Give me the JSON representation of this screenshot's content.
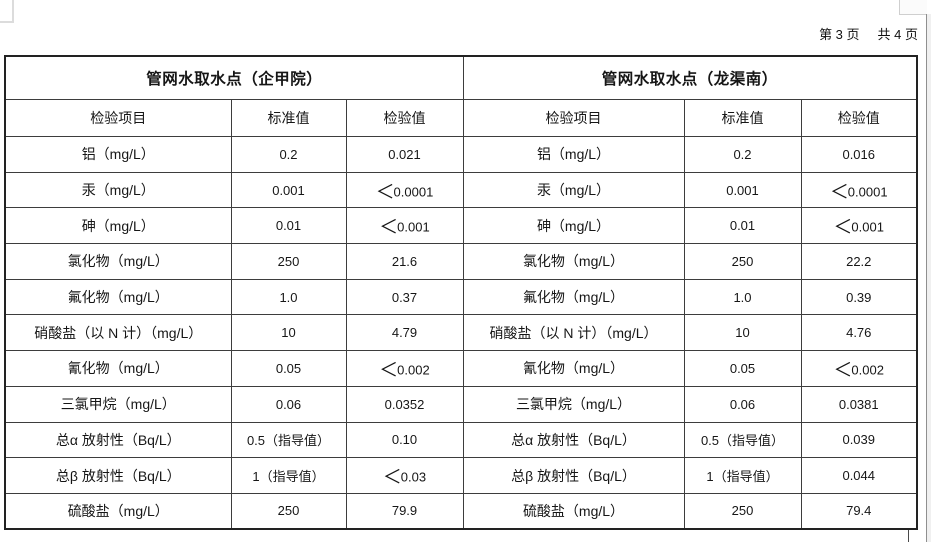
{
  "page_indicator": {
    "current": "第 3 页",
    "total": "共 4 页"
  },
  "tables": [
    {
      "title": "管网水取水点（企甲院）",
      "columns": [
        "检验项目",
        "标准值",
        "检验值"
      ],
      "rows": [
        {
          "item": "铝（mg/L）",
          "standard": "0.2",
          "value": "0.021"
        },
        {
          "item": "汞（mg/L）",
          "standard": "0.001",
          "value": "＜0.0001"
        },
        {
          "item": "砷（mg/L）",
          "standard": "0.01",
          "value": "＜0.001"
        },
        {
          "item": "氯化物（mg/L）",
          "standard": "250",
          "value": "21.6"
        },
        {
          "item": "氟化物（mg/L）",
          "standard": "1.0",
          "value": "0.37"
        },
        {
          "item": "硝酸盐（以 N 计）（mg/L）",
          "standard": "10",
          "value": "4.79"
        },
        {
          "item": "氰化物（mg/L）",
          "standard": "0.05",
          "value": "＜0.002"
        },
        {
          "item": "三氯甲烷（mg/L）",
          "standard": "0.06",
          "value": "0.0352"
        },
        {
          "item": "总α 放射性（Bq/L）",
          "standard": "0.5（指导值）",
          "value": "0.10"
        },
        {
          "item": "总β 放射性（Bq/L）",
          "standard": "1（指导值）",
          "value": "＜0.03"
        },
        {
          "item": "硫酸盐（mg/L）",
          "standard": "250",
          "value": "79.9"
        }
      ]
    },
    {
      "title": "管网水取水点（龙渠南）",
      "columns": [
        "检验项目",
        "标准值",
        "检验值"
      ],
      "rows": [
        {
          "item": "铝（mg/L）",
          "standard": "0.2",
          "value": "0.016"
        },
        {
          "item": "汞（mg/L）",
          "standard": "0.001",
          "value": "＜0.0001"
        },
        {
          "item": "砷（mg/L）",
          "standard": "0.01",
          "value": "＜0.001"
        },
        {
          "item": "氯化物（mg/L）",
          "standard": "250",
          "value": "22.2"
        },
        {
          "item": "氟化物（mg/L）",
          "standard": "1.0",
          "value": "0.39"
        },
        {
          "item": "硝酸盐（以 N 计）（mg/L）",
          "standard": "10",
          "value": "4.76"
        },
        {
          "item": "氰化物（mg/L）",
          "standard": "0.05",
          "value": "＜0.002"
        },
        {
          "item": "三氯甲烷（mg/L）",
          "standard": "0.06",
          "value": "0.0381"
        },
        {
          "item": "总α 放射性（Bq/L）",
          "standard": "0.5（指导值）",
          "value": "0.039"
        },
        {
          "item": "总β 放射性（Bq/L）",
          "standard": "1（指导值）",
          "value": "0.044"
        },
        {
          "item": "硫酸盐（mg/L）",
          "standard": "250",
          "value": "79.4"
        }
      ]
    }
  ]
}
